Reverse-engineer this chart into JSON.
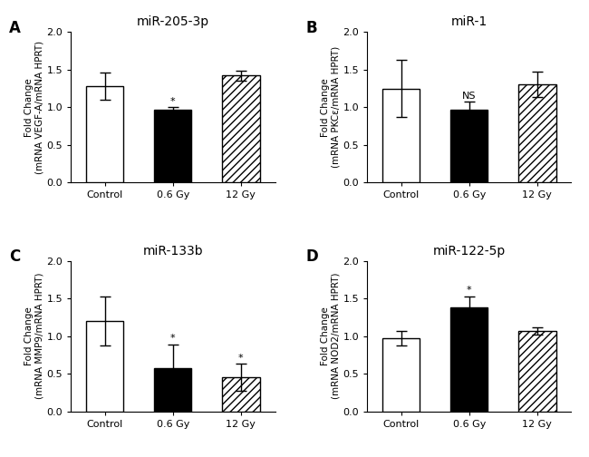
{
  "panels": [
    {
      "label": "A",
      "title": "miR-205-3p",
      "ylabel": "Fold Change\n(mRNA VEGF-A/mRNA HPRT)",
      "categories": [
        "Control",
        "0.6 Gy",
        "12 Gy"
      ],
      "values": [
        1.28,
        0.97,
        1.42
      ],
      "errors": [
        0.18,
        0.03,
        0.07
      ],
      "colors": [
        "white",
        "black",
        "white"
      ],
      "hatch": [
        null,
        null,
        "////"
      ],
      "significance": [
        null,
        "*",
        null
      ],
      "sig_positions": [
        null,
        1.02,
        null
      ],
      "ylim": [
        0,
        2.0
      ],
      "yticks": [
        0.0,
        0.5,
        1.0,
        1.5,
        2.0
      ]
    },
    {
      "label": "B",
      "title": "miR-1",
      "ylabel": "Fold Change\n(mRNA PKCε/mRNA HPRT)",
      "categories": [
        "Control",
        "0.6 Gy",
        "12 Gy"
      ],
      "values": [
        1.25,
        0.97,
        1.3
      ],
      "errors": [
        0.38,
        0.1,
        0.17
      ],
      "colors": [
        "white",
        "black",
        "white"
      ],
      "hatch": [
        null,
        null,
        "////"
      ],
      "significance": [
        null,
        "NS",
        null
      ],
      "sig_positions": [
        null,
        1.09,
        null
      ],
      "ylim": [
        0,
        2.0
      ],
      "yticks": [
        0.0,
        0.5,
        1.0,
        1.5,
        2.0
      ]
    },
    {
      "label": "C",
      "title": "miR-133b",
      "ylabel": "Fold Change\n(mRNA MMP9/mRNA HPRT)",
      "categories": [
        "Control",
        "0.6 Gy",
        "12 Gy"
      ],
      "values": [
        1.2,
        0.57,
        0.45
      ],
      "errors": [
        0.32,
        0.32,
        0.18
      ],
      "colors": [
        "white",
        "black",
        "white"
      ],
      "hatch": [
        null,
        null,
        "////"
      ],
      "significance": [
        null,
        "*",
        "*"
      ],
      "sig_positions": [
        null,
        0.91,
        0.65
      ],
      "ylim": [
        0,
        2.0
      ],
      "yticks": [
        0.0,
        0.5,
        1.0,
        1.5,
        2.0
      ]
    },
    {
      "label": "D",
      "title": "miR-122-5p",
      "ylabel": "Fold Change\n(mRNA NOD2/mRNA HPRT)",
      "categories": [
        "Control",
        "0.6 Gy",
        "12 Gy"
      ],
      "values": [
        0.97,
        1.38,
        1.07
      ],
      "errors": [
        0.1,
        0.15,
        0.05
      ],
      "colors": [
        "white",
        "black",
        "white"
      ],
      "hatch": [
        null,
        null,
        "////"
      ],
      "significance": [
        null,
        "*",
        null
      ],
      "sig_positions": [
        null,
        1.55,
        null
      ],
      "ylim": [
        0,
        2.0
      ],
      "yticks": [
        0.0,
        0.5,
        1.0,
        1.5,
        2.0
      ]
    }
  ],
  "background_color": "#ffffff",
  "bar_width": 0.55,
  "capsize": 4,
  "edgecolor": "black",
  "linewidth": 1.0
}
